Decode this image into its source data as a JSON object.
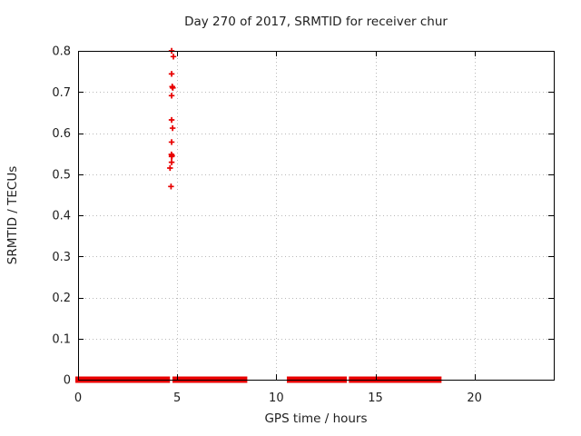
{
  "chart_data": {
    "type": "scatter",
    "title": "Day 270 of 2017, SRMTID for receiver chur",
    "xlabel": "GPS time / hours",
    "ylabel": "SRMTID / TECUs",
    "xlim": [
      0,
      24
    ],
    "ylim": [
      0,
      0.8
    ],
    "xticks": {
      "values": [
        0,
        5,
        10,
        15,
        20
      ],
      "labels": [
        "0",
        "5",
        "10",
        "15",
        "20"
      ]
    },
    "yticks": {
      "values": [
        0,
        0.1,
        0.2,
        0.3,
        0.4,
        0.5,
        0.6,
        0.7,
        0.8
      ],
      "labels": [
        "0",
        "0.1",
        "0.2",
        "0.3",
        "0.4",
        "0.5",
        "0.6",
        "0.7",
        "0.8"
      ]
    },
    "grid": "dotted",
    "legend_position": "none",
    "marker": "plus",
    "colors": {
      "series": "#e80000",
      "grid": "#b9b9b9",
      "axis": "#000000",
      "text": "#202020",
      "background": "#ffffff"
    },
    "series": [
      {
        "name": "SRMTID",
        "cluster_points": [
          [
            4.72,
            0.8
          ],
          [
            4.81,
            0.786
          ],
          [
            4.72,
            0.744
          ],
          [
            4.75,
            0.713
          ],
          [
            4.78,
            0.71
          ],
          [
            4.72,
            0.691
          ],
          [
            4.72,
            0.632
          ],
          [
            4.77,
            0.612
          ],
          [
            4.72,
            0.578
          ],
          [
            4.71,
            0.548
          ],
          [
            4.74,
            0.545
          ],
          [
            4.72,
            0.543
          ],
          [
            4.72,
            0.529
          ],
          [
            4.64,
            0.515
          ],
          [
            4.69,
            0.47
          ]
        ],
        "zero_value_runs_hours": [
          [
            0,
            4.5
          ],
          [
            4.9,
            8.4
          ],
          [
            10.67,
            13.42
          ],
          [
            13.8,
            18.2
          ]
        ]
      }
    ]
  }
}
